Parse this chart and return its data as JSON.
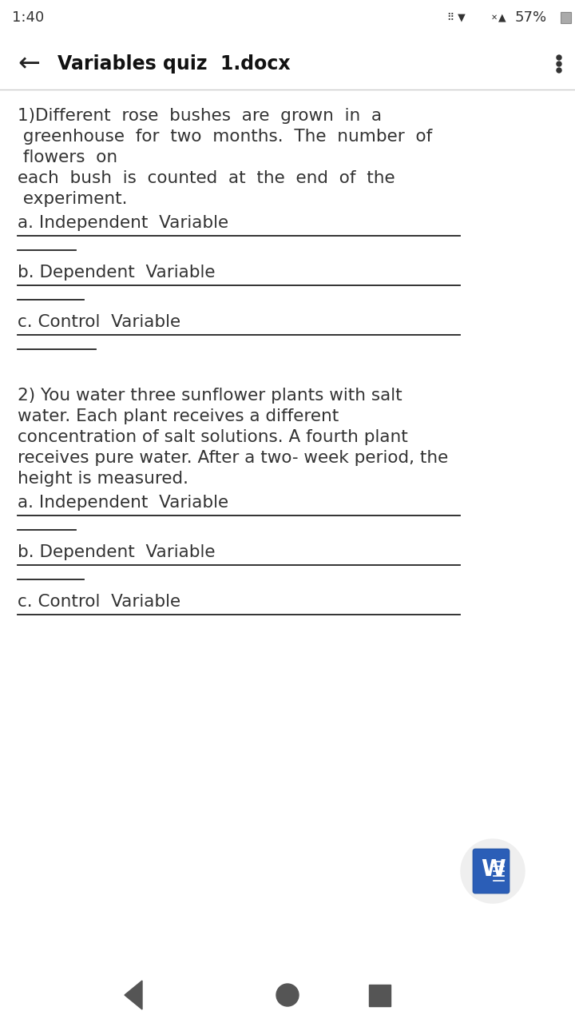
{
  "bg_color": "#ffffff",
  "text_color": "#333333",
  "line_color": "#222222",
  "nav_color": "#555555",
  "divider_color": "#cccccc",
  "status_time": "1:40",
  "status_battery": "57%",
  "toolbar_title": "Variables quiz  1.docx",
  "q1_line1": "1)Different  rose  bushes  are  grown  in  a",
  "q1_line2": " greenhouse  for  two  months.  The  number  of",
  "q1_line3": " flowers  on",
  "q1_line4": "each  bush  is  counted  at  the  end  of  the",
  "q1_line5": " experiment.",
  "q1_a": "a. Independent  Variable",
  "q1_b": "b. Dependent  Variable",
  "q1_c": "c. Control  Variable",
  "q2_line1": "2) You water three sunflower plants with salt",
  "q2_line2": "water. Each plant receives a different",
  "q2_line3": "concentration of salt solutions. A fourth plant",
  "q2_line4": "receives pure water. After a two- week period, the",
  "q2_line5": "height is measured.",
  "q2_a": "a. Independent  Variable",
  "q2_b": "b. Dependent  Variable",
  "q2_c": "c. Control  Variable",
  "W_icon_color": "#2b5eb7",
  "W_text": "W"
}
